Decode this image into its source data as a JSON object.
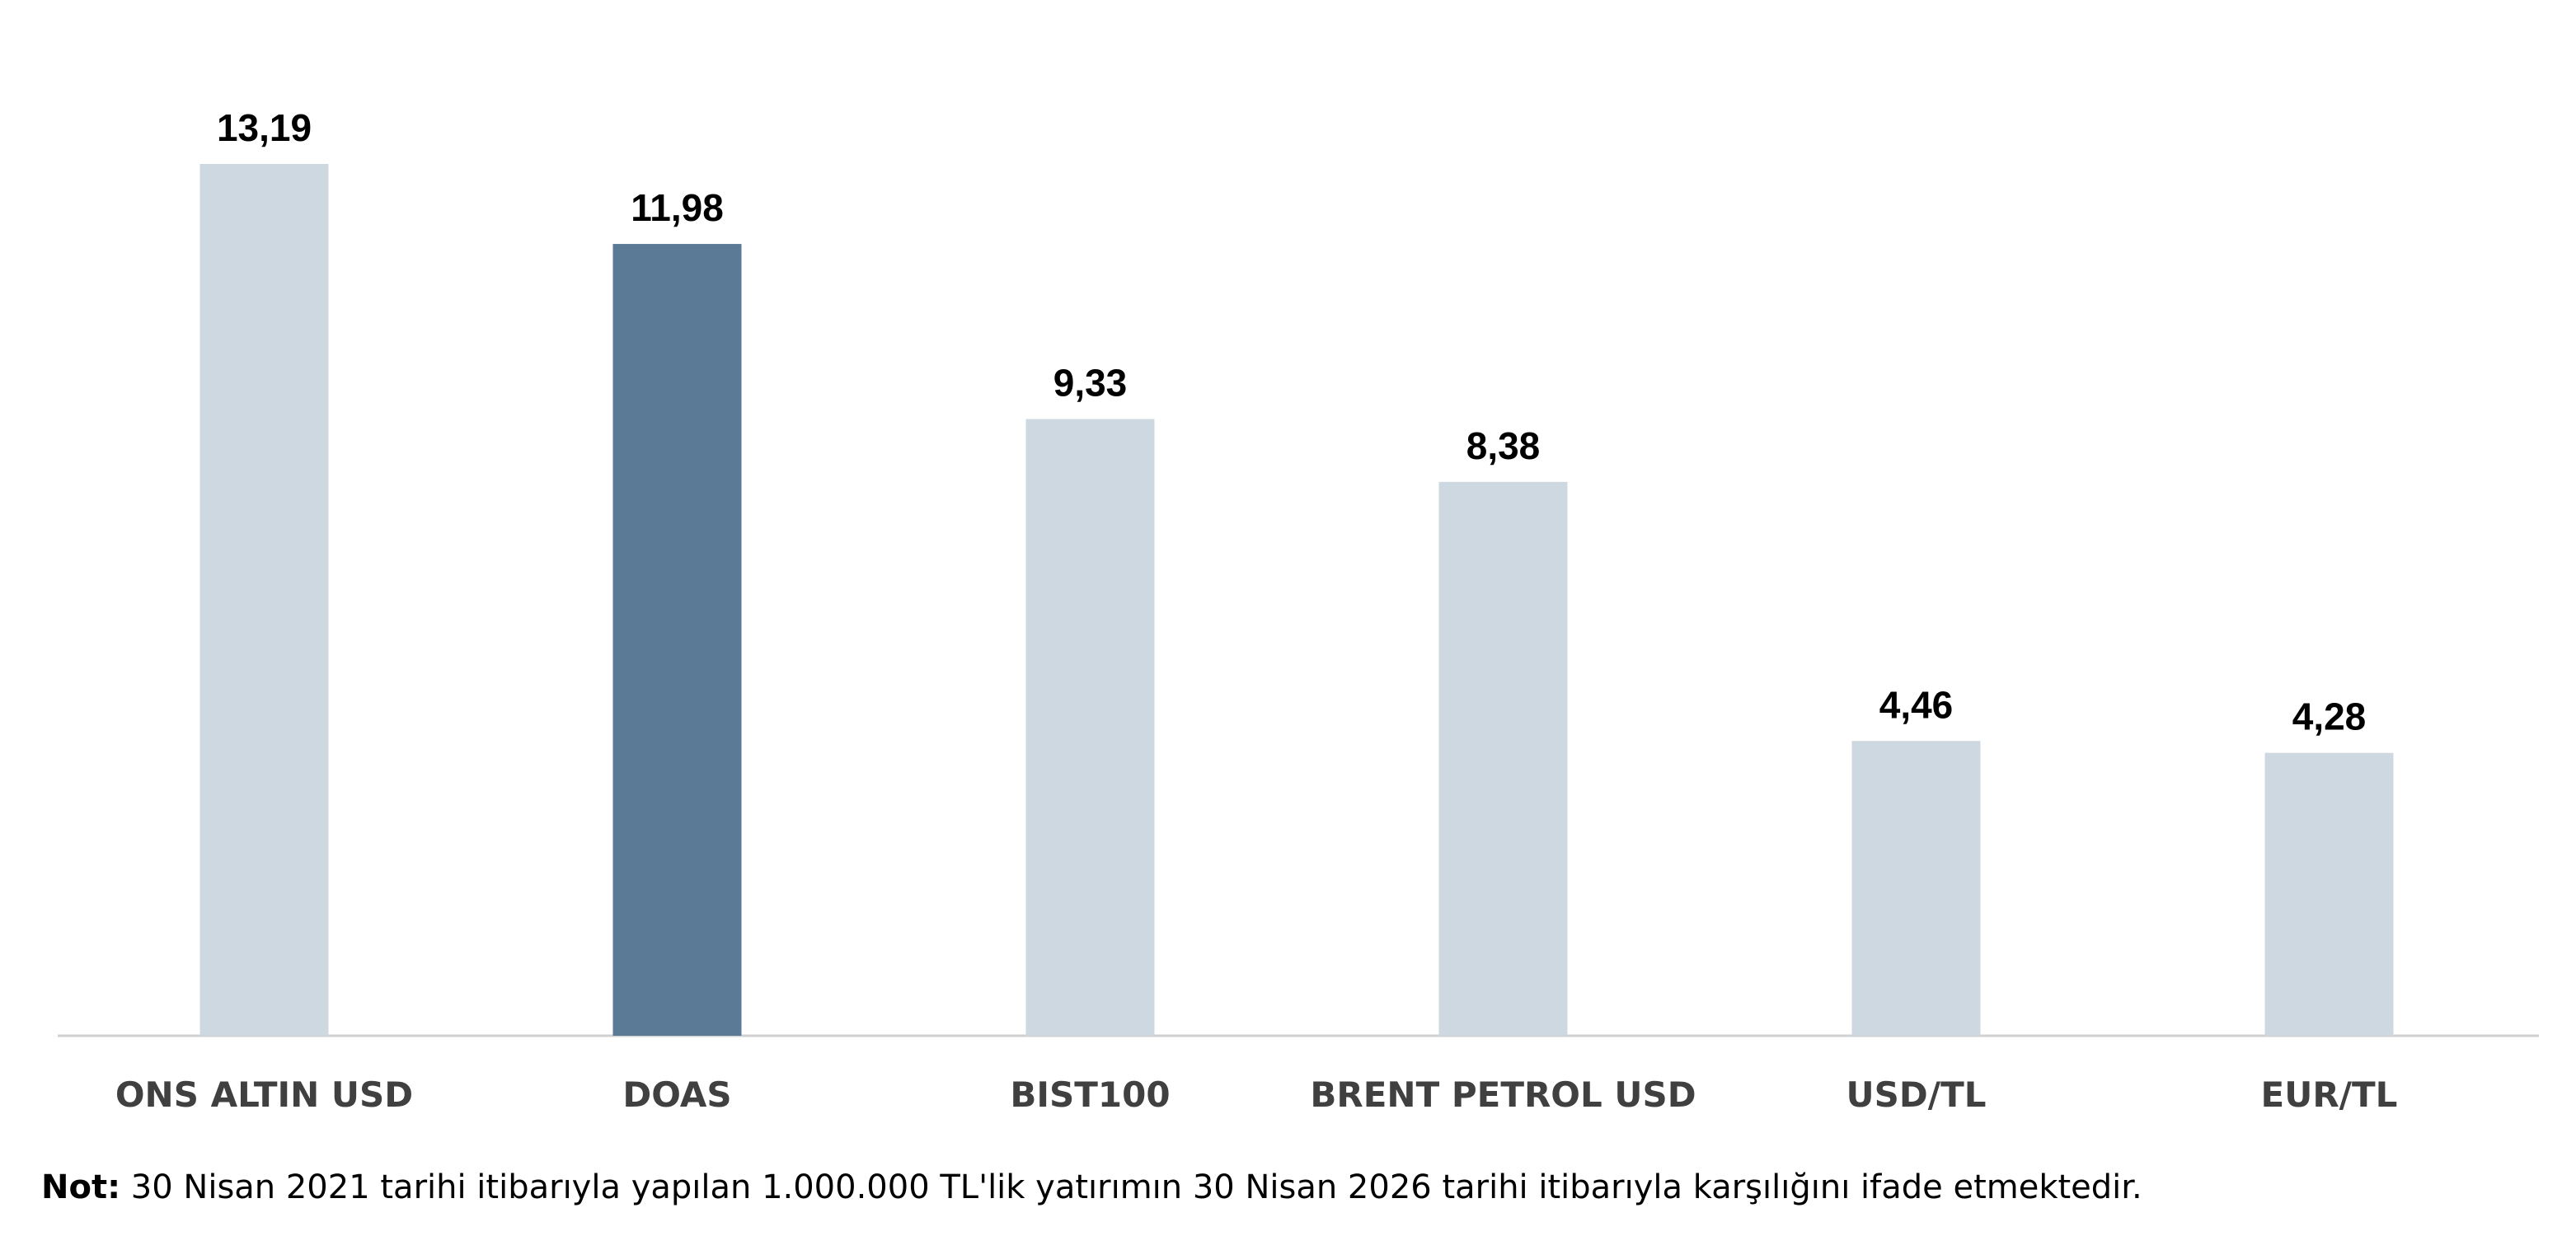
{
  "chart_data": {
    "type": "bar",
    "categories": [
      "ONS ALTIN USD",
      "DOAS",
      "BIST100",
      "BRENT PETROL USD",
      "USD/TL",
      "EUR/TL"
    ],
    "values": [
      13.19,
      11.98,
      9.33,
      8.38,
      4.46,
      4.28
    ],
    "value_labels": [
      "13,19",
      "11,98",
      "9,33",
      "8,38",
      "4,46",
      "4,28"
    ],
    "highlight_category": "DOAS",
    "ylim": [
      0,
      13.19
    ],
    "grid": false,
    "legend": "none",
    "colors": {
      "bar": "#CDD8E0",
      "highlight": "#5A7A96",
      "axis": "#D0D0D0",
      "category_label": "#404040",
      "value_label": "#000000"
    }
  },
  "note": {
    "label": "Not:",
    "text": " 30 Nisan 2021 tarihi itibarıyla yapılan 1.000.000 TL'lik yatırımın 30 Nisan 2026 tarihi itibarıyla karşılığını ifade etmektedir."
  }
}
